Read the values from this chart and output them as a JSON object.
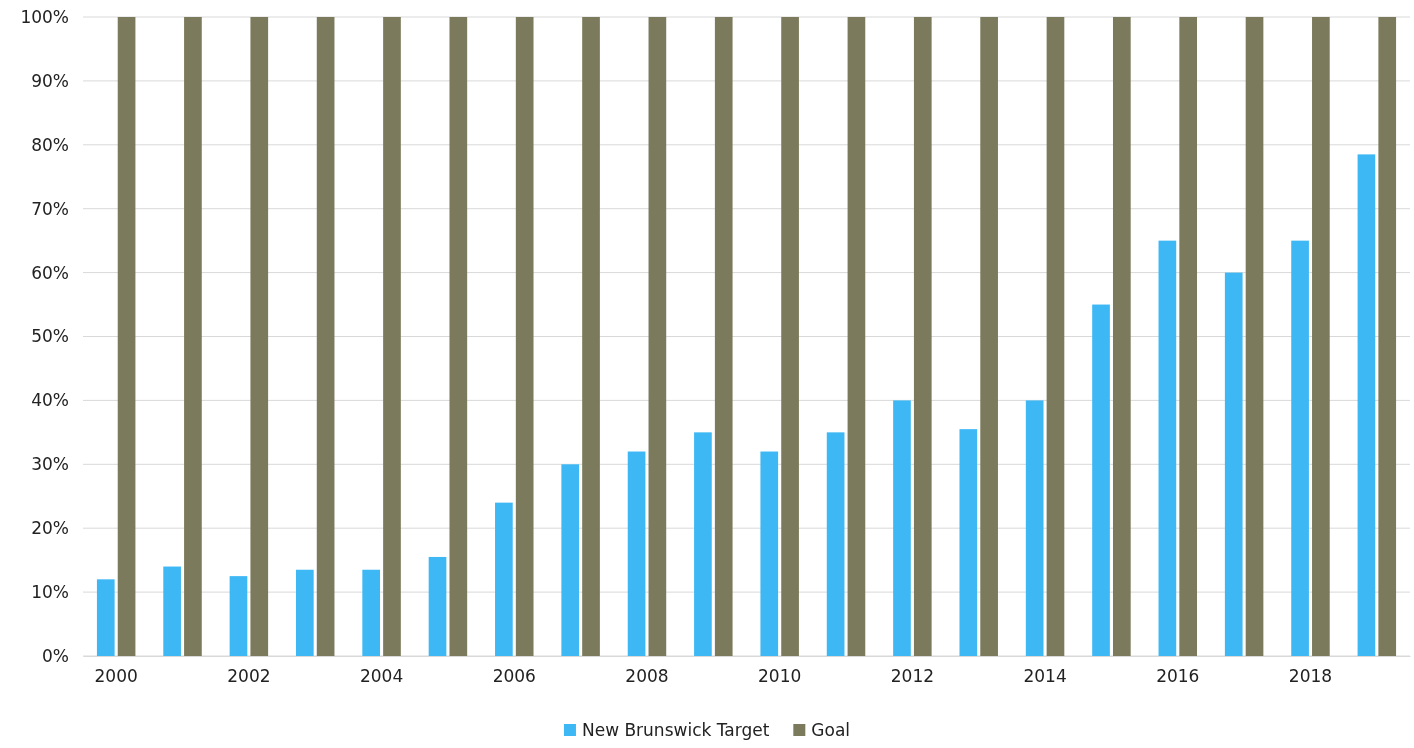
{
  "chart_data": {
    "type": "bar",
    "categories": [
      "2000",
      null,
      "2002",
      null,
      "2004",
      null,
      "2006",
      null,
      "2008",
      null,
      "2010",
      null,
      "2012",
      null,
      "2014",
      null,
      "2016",
      null,
      "2018",
      null
    ],
    "series": [
      {
        "name": "New Brunswick Target",
        "color": "#3db8f5",
        "values": [
          12,
          14,
          12.5,
          13.5,
          13.5,
          15.5,
          24,
          30,
          32,
          35,
          32,
          35,
          40,
          35.5,
          40,
          55,
          65,
          60,
          65,
          78.5
        ]
      },
      {
        "name": "Goal",
        "color": "#7b7a5c",
        "values": [
          100,
          100,
          100,
          100,
          100,
          100,
          100,
          100,
          100,
          100,
          100,
          100,
          100,
          100,
          100,
          100,
          100,
          100,
          100,
          100
        ]
      }
    ],
    "ylim": [
      0,
      100
    ],
    "yticks": [
      {
        "value": 0,
        "label": "0%"
      },
      {
        "value": 10,
        "label": "10%"
      },
      {
        "value": 20,
        "label": "20%"
      },
      {
        "value": 30,
        "label": "30%"
      },
      {
        "value": 40,
        "label": "40%"
      },
      {
        "value": 50,
        "label": "50%"
      },
      {
        "value": 60,
        "label": "60%"
      },
      {
        "value": 70,
        "label": "70%"
      },
      {
        "value": 80,
        "label": "80%"
      },
      {
        "value": 90,
        "label": "90%"
      },
      {
        "value": 100,
        "label": "100%"
      }
    ],
    "grid": "y",
    "legend": "bottom"
  }
}
